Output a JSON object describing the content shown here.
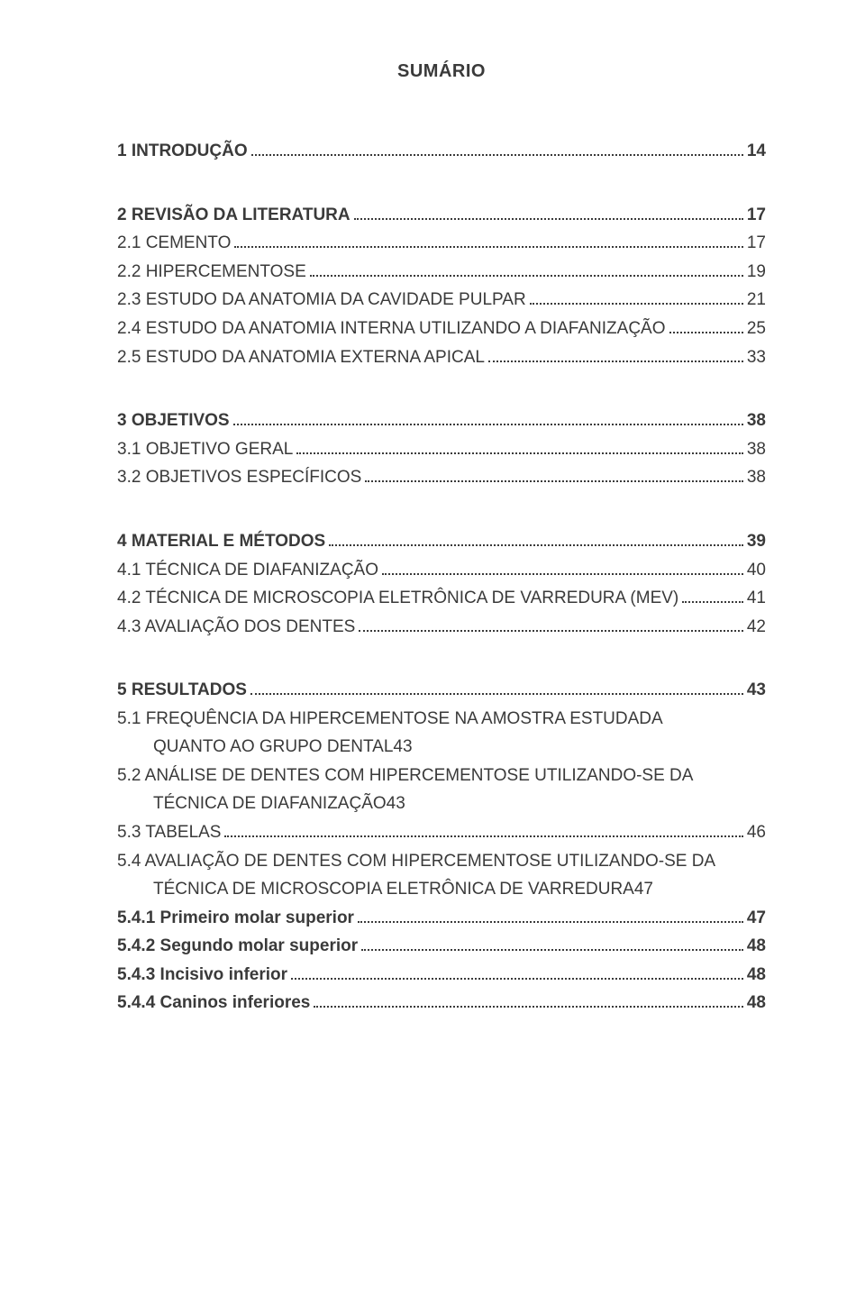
{
  "title": "SUMÁRIO",
  "entries": [
    {
      "type": "row",
      "bold": true,
      "label": "1 INTRODUÇÃO",
      "page": "14"
    },
    {
      "type": "gap"
    },
    {
      "type": "row",
      "bold": true,
      "label": "2 REVISÃO DA LITERATURA",
      "page": "17"
    },
    {
      "type": "row",
      "bold": false,
      "label": "2.1 CEMENTO",
      "page": "17"
    },
    {
      "type": "row",
      "bold": false,
      "label": "2.2 HIPERCEMENTOSE",
      "page": "19"
    },
    {
      "type": "row",
      "bold": false,
      "label": "2.3 ESTUDO DA ANATOMIA DA CAVIDADE PULPAR",
      "page": "21"
    },
    {
      "type": "row",
      "bold": false,
      "label": "2.4 ESTUDO DA ANATOMIA INTERNA UTILIZANDO A DIAFANIZAÇÃO",
      "page": "25"
    },
    {
      "type": "row",
      "bold": false,
      "label": "2.5 ESTUDO DA ANATOMIA EXTERNA APICAL",
      "page": "33"
    },
    {
      "type": "gap"
    },
    {
      "type": "row",
      "bold": true,
      "label": "3 OBJETIVOS",
      "page": "38"
    },
    {
      "type": "row",
      "bold": false,
      "label": "3.1 OBJETIVO GERAL",
      "page": "38"
    },
    {
      "type": "row",
      "bold": false,
      "label": "3.2 OBJETIVOS ESPECÍFICOS",
      "page": "38"
    },
    {
      "type": "gap"
    },
    {
      "type": "row",
      "bold": true,
      "label": "4 MATERIAL E MÉTODOS",
      "page": "39"
    },
    {
      "type": "row",
      "bold": false,
      "label": "4.1 TÉCNICA DE DIAFANIZAÇÃO",
      "page": "40"
    },
    {
      "type": "row",
      "bold": false,
      "label": "4.2 TÉCNICA DE MICROSCOPIA ELETRÔNICA DE VARREDURA (MEV)",
      "page": "41"
    },
    {
      "type": "row",
      "bold": false,
      "label": "4.3 AVALIAÇÃO DOS DENTES",
      "page": "42"
    },
    {
      "type": "gap"
    },
    {
      "type": "row",
      "bold": true,
      "label": "5 RESULTADOS",
      "page": "43"
    },
    {
      "type": "wrap",
      "bold": false,
      "line1": "5.1 FREQUÊNCIA DA HIPERCEMENTOSE NA AMOSTRA ESTUDADA",
      "line2": "QUANTO AO GRUPO DENTAL",
      "page": "43"
    },
    {
      "type": "wrap",
      "bold": false,
      "line1": "5.2 ANÁLISE DE DENTES COM HIPERCEMENTOSE UTILIZANDO-SE DA",
      "line2": "TÉCNICA DE DIAFANIZAÇÃO",
      "page": "43"
    },
    {
      "type": "row",
      "bold": false,
      "label": "5.3 TABELAS",
      "page": "46"
    },
    {
      "type": "wrap",
      "bold": false,
      "line1": "5.4 AVALIAÇÃO DE DENTES COM HIPERCEMENTOSE UTILIZANDO-SE DA",
      "line2": "TÉCNICA DE MICROSCOPIA ELETRÔNICA DE VARREDURA",
      "page": "47"
    },
    {
      "type": "row",
      "bold": true,
      "label": "5.4.1 Primeiro molar superior",
      "page": "47"
    },
    {
      "type": "row",
      "bold": true,
      "label": "5.4.2 Segundo molar superior",
      "page": "48"
    },
    {
      "type": "row",
      "bold": true,
      "label": "5.4.3 Incisivo inferior",
      "page": "48"
    },
    {
      "type": "row",
      "bold": true,
      "label": "5.4.4 Caninos inferiores",
      "page": "48"
    }
  ]
}
